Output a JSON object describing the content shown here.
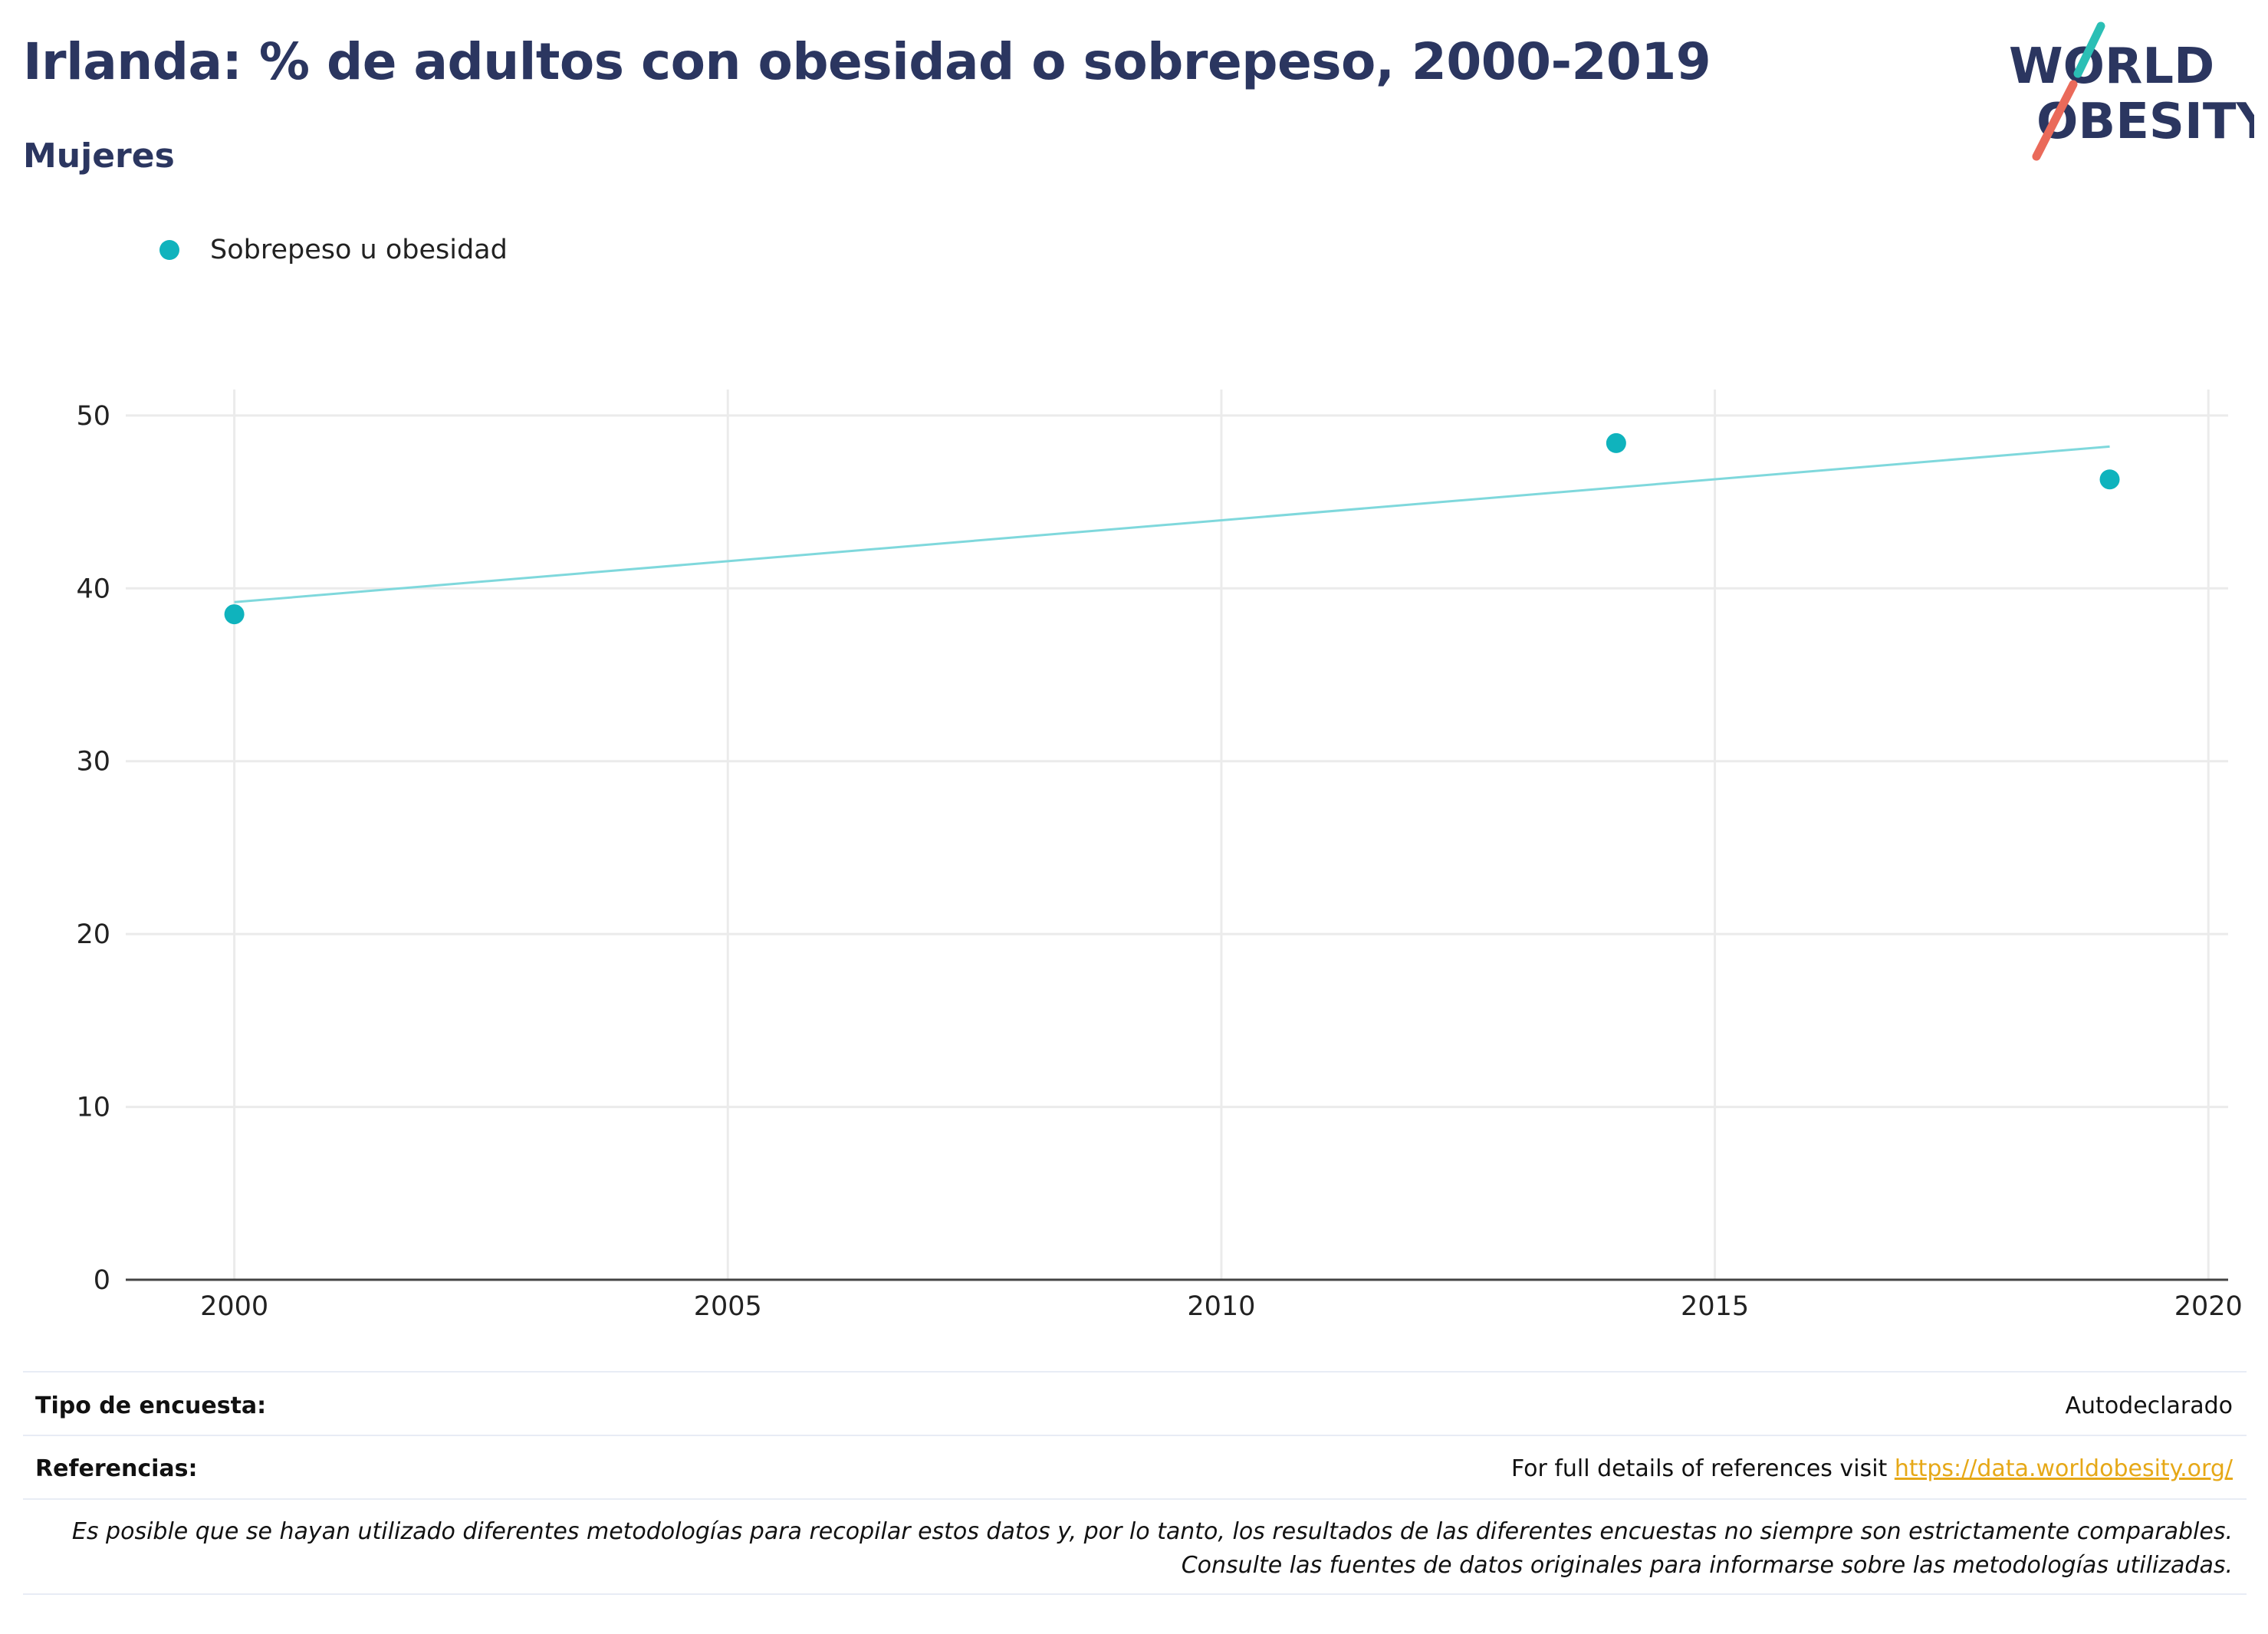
{
  "header": {
    "title": "Irlanda: % de adultos con obesidad o sobrepeso, 2000-2019",
    "subtitle": "Mujeres",
    "logo_line1": "WORLD",
    "logo_line2": "OBESITY"
  },
  "legend": {
    "label": "Sobrepeso u obesidad",
    "color": "#0fb3bd"
  },
  "colors": {
    "title": "#2b3660",
    "point": "#0fb3bd",
    "trendline": "#7fd8dc",
    "grid": "#ebebeb",
    "link": "#e6a817"
  },
  "chart_data": {
    "type": "scatter",
    "title": "Irlanda: % de adultos con obesidad o sobrepeso, 2000-2019",
    "subtitle": "Mujeres",
    "xlabel": "",
    "ylabel": "",
    "xlim": [
      1998.9,
      2020.2
    ],
    "ylim": [
      0,
      51.5
    ],
    "x_ticks": [
      2000,
      2005,
      2010,
      2015,
      2020
    ],
    "y_ticks": [
      0,
      10,
      20,
      30,
      40,
      50
    ],
    "grid": true,
    "legend_position": "top-left",
    "series": [
      {
        "name": "Sobrepeso u obesidad",
        "x": [
          2000,
          2014,
          2019
        ],
        "y": [
          38.5,
          48.4,
          46.3
        ]
      }
    ],
    "trendline": {
      "x": [
        2000,
        2019
      ],
      "y": [
        39.2,
        48.2
      ]
    }
  },
  "footer": {
    "survey_type_label": "Tipo de encuesta:",
    "survey_type_value": "Autodeclarado",
    "references_label": "Referencias:",
    "references_text": "For full details of references visit ",
    "references_link": "https://data.worldobesity.org/",
    "note": "Es posible que se hayan utilizado diferentes metodologías para recopilar estos datos y, por lo tanto, los resultados de las diferentes encuestas no siempre son estrictamente comparables. Consulte las fuentes de datos originales para informarse sobre las metodologías utilizadas."
  }
}
